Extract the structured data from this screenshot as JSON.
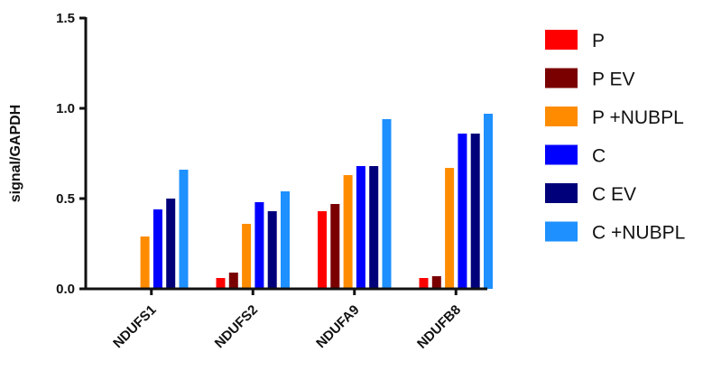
{
  "chart_data": {
    "type": "bar",
    "title": "",
    "xlabel": "",
    "ylabel": "signal/GAPDH",
    "ylim": [
      0,
      1.5
    ],
    "yticks": [
      0.0,
      0.5,
      1.0,
      1.5
    ],
    "ytick_labels": [
      "0.0",
      "0.5",
      "1.0",
      "1.5"
    ],
    "categories": [
      "NDUFS1",
      "NDUFS2",
      "NDUFA9",
      "NDUFB8"
    ],
    "legend_position": "right",
    "grid": false,
    "series": [
      {
        "name": "P",
        "color": "#ff0000",
        "values": [
          0.0,
          0.06,
          0.43,
          0.06
        ]
      },
      {
        "name": "P EV",
        "color": "#7a0000",
        "values": [
          0.0,
          0.09,
          0.47,
          0.07
        ]
      },
      {
        "name": "P +NUBPL",
        "color": "#ff8c00",
        "values": [
          0.29,
          0.36,
          0.63,
          0.67
        ]
      },
      {
        "name": "C",
        "color": "#0000ff",
        "values": [
          0.44,
          0.48,
          0.68,
          0.86
        ]
      },
      {
        "name": "C EV",
        "color": "#00007a",
        "values": [
          0.5,
          0.43,
          0.68,
          0.86
        ]
      },
      {
        "name": "C +NUBPL",
        "color": "#1e90ff",
        "values": [
          0.66,
          0.54,
          0.94,
          0.97
        ]
      }
    ]
  }
}
